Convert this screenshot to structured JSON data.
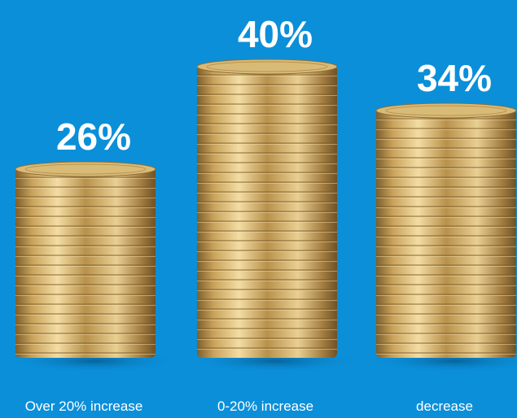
{
  "chart_data": {
    "type": "bar",
    "categories": [
      "Over 20% increase",
      "0-20% increase",
      "decrease"
    ],
    "values": [
      26,
      40,
      34
    ],
    "value_labels": [
      "26%",
      "40%",
      "34%"
    ],
    "color": "#c9a35c"
  }
}
